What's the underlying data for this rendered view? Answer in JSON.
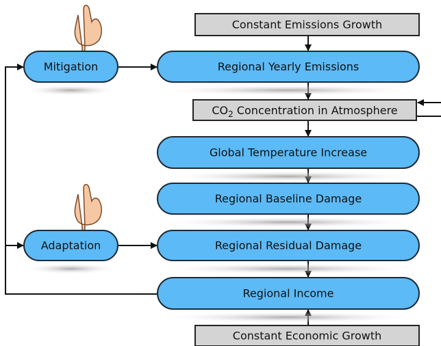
{
  "nodes": [
    {
      "label": "Constant Emissions Growth"
    },
    {
      "label": "Regional Yearly Emissions"
    },
    {
      "label_parts": [
        "CO",
        "2",
        " Concentration in Atmosphere"
      ]
    },
    {
      "label": "Global Temperature Increase"
    },
    {
      "label": "Regional Baseline Damage"
    },
    {
      "label": "Regional Residual Damage"
    },
    {
      "label": "Regional Income"
    },
    {
      "label": "Constant Economic Growth"
    },
    {
      "label": "Mitigation"
    },
    {
      "label": "Adaptation"
    }
  ]
}
